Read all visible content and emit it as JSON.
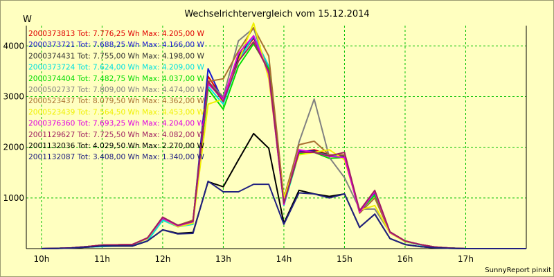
{
  "chart_data": {
    "type": "line",
    "title": "Wechselrichtervergleich vom 15.12.2014",
    "ylabel": "W",
    "xlabel": "",
    "footer": "SunnyReport pinxit",
    "ylim": [
      0,
      4400
    ],
    "yticks": [
      1000,
      2000,
      3000,
      4000
    ],
    "xlim": [
      9.75,
      18.0
    ],
    "xticks": [
      10,
      11,
      12,
      13,
      14,
      15,
      16,
      17
    ],
    "xtick_labels": [
      "10h",
      "11h",
      "12h",
      "13h",
      "14h",
      "15h",
      "16h",
      "17h"
    ],
    "grid": true,
    "legend_position": "top-left",
    "x": [
      10.0,
      10.25,
      10.5,
      10.75,
      11.0,
      11.25,
      11.5,
      11.75,
      12.0,
      12.25,
      12.5,
      12.75,
      13.0,
      13.25,
      13.5,
      13.75,
      14.0,
      14.25,
      14.5,
      14.75,
      15.0,
      15.25,
      15.5,
      15.75,
      16.0,
      16.25,
      16.5,
      16.75,
      17.0,
      17.25,
      17.5,
      17.75,
      18.0
    ],
    "series": [
      {
        "name": "2000373813",
        "label": "2000373813 Tot: 7.776,25 Wh Max: 4.205,00 W",
        "color": "#e00000",
        "values": [
          0,
          5,
          15,
          40,
          70,
          75,
          80,
          210,
          610,
          450,
          540,
          3400,
          2950,
          3750,
          4150,
          3550,
          880,
          1900,
          1950,
          1850,
          1800,
          720,
          1080,
          330,
          150,
          80,
          30,
          10,
          0,
          0,
          0,
          0,
          0
        ]
      },
      {
        "name": "2000373721",
        "label": "2000373721 Tot: 7.688,25 Wh Max: 4.166,00 W",
        "color": "#1818d0",
        "values": [
          0,
          5,
          15,
          40,
          70,
          75,
          80,
          210,
          600,
          440,
          530,
          3550,
          2900,
          3800,
          4170,
          3500,
          870,
          1920,
          1930,
          1820,
          1850,
          730,
          1100,
          320,
          150,
          80,
          30,
          10,
          0,
          0,
          0,
          0,
          0
        ]
      },
      {
        "name": "2000374431",
        "label": "2000374431 Tot: 7.755,00 Wh Max: 4.198,00 W",
        "color": "#303030",
        "values": [
          0,
          5,
          15,
          40,
          70,
          75,
          80,
          200,
          590,
          450,
          540,
          3300,
          2950,
          3800,
          4190,
          3500,
          900,
          1900,
          1920,
          1850,
          1820,
          720,
          1090,
          330,
          150,
          80,
          30,
          10,
          0,
          0,
          0,
          0,
          0
        ]
      },
      {
        "name": "2000373724",
        "label": "2000373724 Tot: 7.624,00 Wh Max: 4.209,00 W",
        "color": "#00e0e0",
        "values": [
          0,
          5,
          15,
          30,
          40,
          50,
          60,
          150,
          560,
          430,
          480,
          3200,
          2850,
          3700,
          4200,
          3600,
          850,
          1880,
          1900,
          1840,
          1800,
          760,
          1060,
          320,
          140,
          70,
          30,
          10,
          0,
          0,
          0,
          0,
          0
        ]
      },
      {
        "name": "2000374404",
        "label": "2000374404 Tot: 7.482,75 Wh Max: 4.037,00 W",
        "color": "#00dd00",
        "values": [
          0,
          5,
          15,
          40,
          70,
          75,
          80,
          200,
          600,
          430,
          520,
          3150,
          2750,
          3600,
          4040,
          3550,
          890,
          1880,
          1900,
          1780,
          1800,
          740,
          1050,
          310,
          140,
          80,
          30,
          10,
          0,
          0,
          0,
          0,
          0
        ]
      },
      {
        "name": "2000502737",
        "label": "2000502737 Tot: 7.809,00 Wh Max: 4.474,00 W",
        "color": "#808080",
        "values": [
          0,
          5,
          15,
          40,
          70,
          75,
          80,
          210,
          620,
          460,
          540,
          3300,
          3000,
          4100,
          4350,
          3450,
          900,
          2100,
          2950,
          1800,
          1400,
          780,
          780,
          320,
          150,
          80,
          30,
          10,
          0,
          0,
          0,
          0,
          0
        ]
      },
      {
        "name": "2000523437",
        "label": "2000523437 Tot: 8.079,50 Wh Max: 4.362,00 W",
        "color": "#a87030",
        "values": [
          0,
          5,
          15,
          40,
          70,
          75,
          80,
          210,
          620,
          460,
          560,
          3300,
          3350,
          3900,
          4360,
          3800,
          1000,
          2050,
          2120,
          1850,
          1850,
          700,
          1000,
          320,
          150,
          80,
          30,
          10,
          0,
          0,
          0,
          0,
          0
        ]
      },
      {
        "name": "2000523439",
        "label": "2000523439 Tot: 7.564,50 Wh Max: 4.453,00 W",
        "color": "#f0f000",
        "values": [
          0,
          5,
          15,
          40,
          70,
          75,
          80,
          200,
          600,
          430,
          500,
          2850,
          2950,
          3700,
          4450,
          3350,
          1000,
          1850,
          1900,
          1950,
          1750,
          760,
          850,
          310,
          140,
          80,
          30,
          10,
          0,
          0,
          0,
          0,
          0
        ]
      },
      {
        "name": "2000376360",
        "label": "2000376360 Tot: 7.693,25 Wh Max: 4.204,00 W",
        "color": "#e000e0",
        "values": [
          0,
          5,
          15,
          40,
          70,
          75,
          80,
          210,
          600,
          450,
          530,
          3250,
          2950,
          3850,
          4200,
          3450,
          870,
          1950,
          1900,
          1820,
          1800,
          720,
          1120,
          320,
          150,
          80,
          30,
          10,
          0,
          0,
          0,
          0,
          0
        ]
      },
      {
        "name": "2001129627",
        "label": "2001129627 Tot: 7.725,50 Wh Max: 4.082,00 W",
        "color": "#a02060",
        "values": [
          0,
          5,
          15,
          40,
          70,
          75,
          80,
          210,
          620,
          460,
          540,
          3300,
          2900,
          3700,
          4080,
          3500,
          900,
          1900,
          1900,
          1830,
          1900,
          750,
          1150,
          330,
          150,
          80,
          30,
          10,
          0,
          0,
          0,
          0,
          0
        ]
      },
      {
        "name": "2001132036",
        "label": "2001132036 Tot: 4.029,50 Wh Max: 2.270,00 W",
        "color": "#000000",
        "values": [
          0,
          3,
          10,
          30,
          50,
          50,
          50,
          150,
          370,
          300,
          320,
          1320,
          1220,
          1750,
          2270,
          1980,
          500,
          1150,
          1080,
          1030,
          1080,
          420,
          680,
          200,
          80,
          40,
          15,
          5,
          0,
          0,
          0,
          0,
          0
        ]
      },
      {
        "name": "2001132087",
        "label": "2001132087 Tot: 3.408,00 Wh Max: 1.340,00 W",
        "color": "#202080",
        "values": [
          0,
          3,
          10,
          30,
          50,
          50,
          50,
          150,
          370,
          290,
          300,
          1330,
          1120,
          1120,
          1270,
          1270,
          480,
          1100,
          1080,
          1000,
          1080,
          420,
          680,
          200,
          80,
          40,
          15,
          5,
          0,
          0,
          0,
          0,
          0
        ]
      }
    ]
  }
}
